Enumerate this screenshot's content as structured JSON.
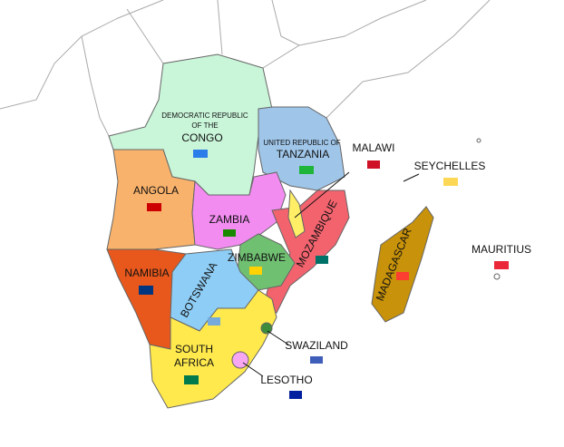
{
  "countries": [
    {
      "label": [
        "DEMOCRATIC REPUBLIC",
        "OF THE",
        "CONGO"
      ]
    },
    {
      "label": [
        "UNITED REPUBLIC OF",
        "TANZANIA"
      ]
    },
    {
      "label": [
        "ANGOLA"
      ]
    },
    {
      "label": [
        "ZAMBIA"
      ]
    },
    {
      "label": [
        "MALAWI"
      ]
    },
    {
      "label": [
        "MOZAMBIQUE"
      ]
    },
    {
      "label": [
        "ZIMBABWE"
      ]
    },
    {
      "label": [
        "NAMIBIA"
      ]
    },
    {
      "label": [
        "BOTSWANA"
      ]
    },
    {
      "label": [
        "SOUTH",
        "AFRICA"
      ]
    },
    {
      "label": [
        "LESOTHO"
      ]
    },
    {
      "label": [
        "SWAZILAND"
      ]
    },
    {
      "label": [
        "MADAGASCAR"
      ]
    },
    {
      "label": [
        "SEYCHELLES"
      ]
    },
    {
      "label": [
        "MAURITIUS"
      ]
    }
  ]
}
